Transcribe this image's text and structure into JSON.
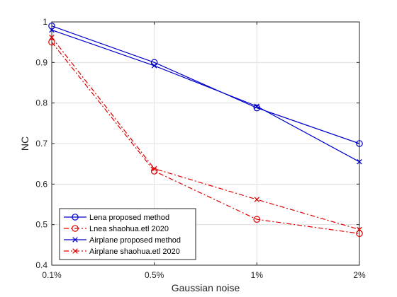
{
  "chart_data": {
    "type": "line",
    "title": "",
    "xlabel": "Gaussian noise",
    "ylabel": "NC",
    "categories": [
      "0.1%",
      "0.5%",
      "1%",
      "2%"
    ],
    "ylim": [
      0.4,
      1.0
    ],
    "yticks": [
      "0.4",
      "0.5",
      "0.6",
      "0.7",
      "0.8",
      "0.9",
      "1"
    ],
    "grid": true,
    "legend_position": "bottom-left",
    "series": [
      {
        "name": "Lena proposed method",
        "values": [
          0.99,
          0.9,
          0.788,
          0.7
        ],
        "color": "#0000cc",
        "marker": "circle",
        "dash": "solid"
      },
      {
        "name": "Lnea shaohua.etl 2020",
        "values": [
          0.95,
          0.632,
          0.513,
          0.478
        ],
        "color": "#dd0000",
        "marker": "circle",
        "dash": "dashdot"
      },
      {
        "name": "Airplane proposed method",
        "values": [
          0.98,
          0.892,
          0.792,
          0.655
        ],
        "color": "#0000cc",
        "marker": "x",
        "dash": "solid"
      },
      {
        "name": "Airplane shaohua.etl 2020",
        "values": [
          0.962,
          0.638,
          0.562,
          0.488
        ],
        "color": "#dd0000",
        "marker": "x",
        "dash": "dashdot"
      }
    ]
  }
}
